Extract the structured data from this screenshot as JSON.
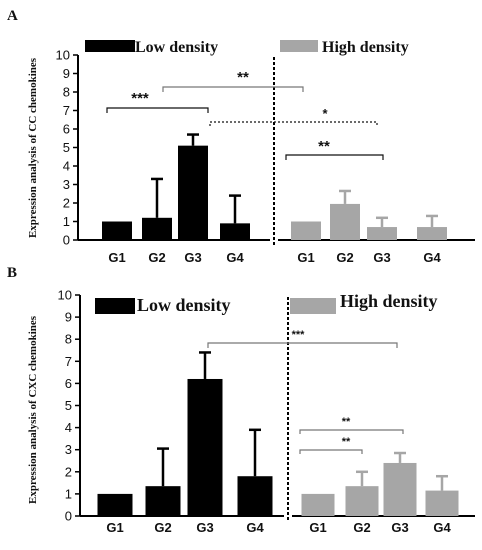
{
  "chart_data": [
    {
      "type": "bar",
      "panel_label": "A",
      "ylabel": "Expression analysis of CC chemokines",
      "ylim": [
        0,
        10
      ],
      "yticks": [
        0,
        1,
        2,
        3,
        4,
        5,
        6,
        7,
        8,
        9,
        10
      ],
      "grid": false,
      "legend_position": "top",
      "series": [
        {
          "name": "Low density",
          "color": "#000000",
          "categories": [
            "G1",
            "G2",
            "G3",
            "G4"
          ],
          "values": [
            1.0,
            1.2,
            5.1,
            0.9
          ],
          "errors": [
            0.0,
            2.1,
            0.6,
            1.5
          ]
        },
        {
          "name": "High density",
          "color": "#a6a6a6",
          "categories": [
            "G1",
            "G2",
            "G3",
            "G4"
          ],
          "values": [
            1.0,
            1.95,
            0.7,
            0.7
          ],
          "errors": [
            0.0,
            0.7,
            0.5,
            0.6
          ]
        }
      ],
      "annotations": [
        "***",
        "**",
        "*",
        "**"
      ]
    },
    {
      "type": "bar",
      "panel_label": "B",
      "ylabel": "Expression analysis of CXC chemokines",
      "ylim": [
        0,
        10
      ],
      "yticks": [
        0,
        1,
        2,
        3,
        4,
        5,
        6,
        7,
        8,
        9,
        10
      ],
      "grid": false,
      "legend_position": "top",
      "series": [
        {
          "name": "Low density",
          "color": "#000000",
          "categories": [
            "G1",
            "G2",
            "G3",
            "G4"
          ],
          "values": [
            1.0,
            1.35,
            6.2,
            1.8
          ],
          "errors": [
            0.0,
            1.7,
            1.2,
            2.1
          ]
        },
        {
          "name": "High density",
          "color": "#a6a6a6",
          "categories": [
            "G1",
            "G2",
            "G3",
            "G4"
          ],
          "values": [
            1.0,
            1.35,
            2.4,
            1.15
          ],
          "errors": [
            0.0,
            0.65,
            0.45,
            0.65
          ]
        }
      ],
      "annotations": [
        "***",
        "**",
        "**"
      ]
    }
  ]
}
